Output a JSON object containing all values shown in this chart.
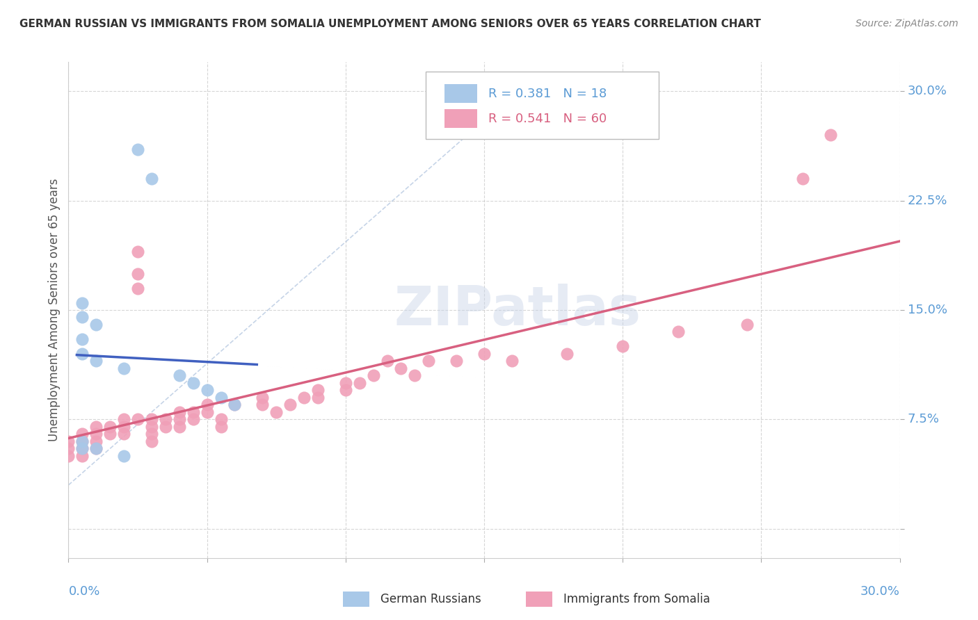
{
  "title": "GERMAN RUSSIAN VS IMMIGRANTS FROM SOMALIA UNEMPLOYMENT AMONG SENIORS OVER 65 YEARS CORRELATION CHART",
  "source": "Source: ZipAtlas.com",
  "ylabel": "Unemployment Among Seniors over 65 years",
  "legend_label_blue": "German Russians",
  "legend_label_pink": "Immigrants from Somalia",
  "R_blue": 0.381,
  "N_blue": 18,
  "R_pink": 0.541,
  "N_pink": 60,
  "xlim": [
    0,
    0.3
  ],
  "ylim": [
    -0.02,
    0.32
  ],
  "xticks": [
    0.0,
    0.05,
    0.1,
    0.15,
    0.2,
    0.25,
    0.3
  ],
  "yticks": [
    0.0,
    0.075,
    0.15,
    0.225,
    0.3
  ],
  "yticklabels": [
    "",
    "7.5%",
    "15.0%",
    "22.5%",
    "30.0%"
  ],
  "color_blue": "#A8C8E8",
  "color_pink": "#F0A0B8",
  "line_blue": "#4060C0",
  "line_pink": "#D86080",
  "watermark": "ZIPatlas",
  "blue_points_x": [
    0.025,
    0.03,
    0.005,
    0.005,
    0.01,
    0.005,
    0.005,
    0.01,
    0.02,
    0.04,
    0.045,
    0.05,
    0.055,
    0.06,
    0.005,
    0.005,
    0.01,
    0.02
  ],
  "blue_points_y": [
    0.26,
    0.24,
    0.155,
    0.145,
    0.14,
    0.13,
    0.12,
    0.115,
    0.11,
    0.105,
    0.1,
    0.095,
    0.09,
    0.085,
    0.06,
    0.055,
    0.055,
    0.05
  ],
  "pink_points_x": [
    0.0,
    0.0,
    0.0,
    0.005,
    0.005,
    0.005,
    0.005,
    0.01,
    0.01,
    0.01,
    0.01,
    0.015,
    0.015,
    0.02,
    0.02,
    0.02,
    0.025,
    0.025,
    0.025,
    0.025,
    0.03,
    0.03,
    0.03,
    0.03,
    0.035,
    0.035,
    0.04,
    0.04,
    0.04,
    0.045,
    0.045,
    0.05,
    0.05,
    0.055,
    0.055,
    0.06,
    0.07,
    0.07,
    0.075,
    0.08,
    0.085,
    0.09,
    0.09,
    0.1,
    0.1,
    0.105,
    0.11,
    0.115,
    0.12,
    0.125,
    0.13,
    0.14,
    0.15,
    0.16,
    0.18,
    0.2,
    0.22,
    0.245,
    0.265,
    0.275
  ],
  "pink_points_y": [
    0.06,
    0.055,
    0.05,
    0.065,
    0.06,
    0.055,
    0.05,
    0.07,
    0.065,
    0.06,
    0.055,
    0.07,
    0.065,
    0.075,
    0.07,
    0.065,
    0.19,
    0.175,
    0.165,
    0.075,
    0.075,
    0.07,
    0.065,
    0.06,
    0.075,
    0.07,
    0.08,
    0.075,
    0.07,
    0.08,
    0.075,
    0.085,
    0.08,
    0.075,
    0.07,
    0.085,
    0.09,
    0.085,
    0.08,
    0.085,
    0.09,
    0.095,
    0.09,
    0.1,
    0.095,
    0.1,
    0.105,
    0.115,
    0.11,
    0.105,
    0.115,
    0.115,
    0.12,
    0.115,
    0.12,
    0.125,
    0.135,
    0.14,
    0.24,
    0.27
  ],
  "dash_line_x": [
    0.0,
    0.165
  ],
  "dash_line_y": [
    0.03,
    0.305
  ]
}
